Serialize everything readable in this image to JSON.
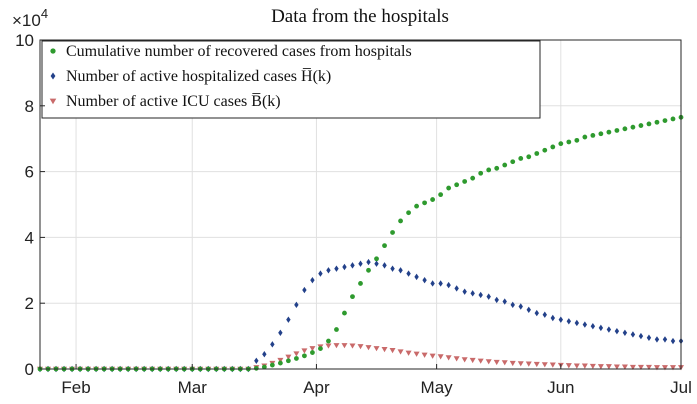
{
  "chart_data": {
    "type": "scatter",
    "title": "Data from the hospitals",
    "y_multiplier": {
      "base": "×10",
      "exponent": "4"
    },
    "xlim": [
      23,
      183
    ],
    "xticks": [
      {
        "value": 32,
        "label": "Feb"
      },
      {
        "value": 61,
        "label": "Mar"
      },
      {
        "value": 92,
        "label": "Apr"
      },
      {
        "value": 122,
        "label": "May"
      },
      {
        "value": 153,
        "label": "Jun"
      },
      {
        "value": 183,
        "label": "Jul"
      }
    ],
    "ylim": [
      0,
      100000
    ],
    "yticks": [
      {
        "value": 0,
        "label": "0"
      },
      {
        "value": 20000,
        "label": "2"
      },
      {
        "value": 40000,
        "label": "4"
      },
      {
        "value": 60000,
        "label": "6"
      },
      {
        "value": 80000,
        "label": "8"
      },
      {
        "value": 100000,
        "label": "10"
      }
    ],
    "grid": true,
    "legend": "upper left",
    "x": [
      23,
      25,
      27,
      29,
      31,
      33,
      35,
      37,
      39,
      41,
      43,
      45,
      47,
      49,
      51,
      53,
      55,
      57,
      59,
      61,
      63,
      65,
      67,
      69,
      71,
      73,
      75,
      77,
      79,
      81,
      83,
      85,
      87,
      89,
      91,
      93,
      95,
      97,
      99,
      101,
      103,
      105,
      107,
      109,
      111,
      113,
      115,
      117,
      119,
      121,
      123,
      125,
      127,
      129,
      131,
      133,
      135,
      137,
      139,
      141,
      143,
      145,
      147,
      149,
      151,
      153,
      155,
      157,
      159,
      161,
      163,
      165,
      167,
      169,
      171,
      173,
      175,
      177,
      179,
      181,
      183
    ],
    "series": [
      {
        "name": "Cumulative number of recovered cases from hospitals",
        "color": "#2e9a2e",
        "marker": "circle",
        "values": [
          0,
          0,
          0,
          0,
          0,
          0,
          0,
          0,
          0,
          0,
          0,
          0,
          0,
          0,
          0,
          0,
          0,
          0,
          0,
          0,
          0,
          0,
          0,
          0,
          0,
          0,
          0,
          200,
          600,
          1200,
          1800,
          2500,
          3200,
          4000,
          5000,
          6200,
          8500,
          12000,
          17000,
          22000,
          26000,
          30000,
          33500,
          37500,
          41500,
          45000,
          47500,
          49500,
          50500,
          51500,
          53000,
          55000,
          56000,
          57000,
          58000,
          59500,
          60500,
          61000,
          62000,
          63000,
          64000,
          64500,
          65500,
          66500,
          67500,
          68500,
          69000,
          69500,
          70500,
          71000,
          71500,
          72000,
          72500,
          73000,
          73500,
          74000,
          74500,
          75000,
          75500,
          76000,
          76500
        ]
      },
      {
        "name": "Number of active hospitalized cases H̅(k)",
        "color": "#23418a",
        "marker": "diamond",
        "values": [
          0,
          0,
          0,
          0,
          0,
          0,
          0,
          0,
          0,
          0,
          0,
          0,
          0,
          0,
          0,
          0,
          0,
          0,
          0,
          0,
          0,
          0,
          0,
          0,
          0,
          0,
          0,
          2500,
          4500,
          7500,
          11000,
          15000,
          19500,
          24000,
          27000,
          29000,
          30000,
          30500,
          31000,
          31500,
          32000,
          32500,
          32000,
          31500,
          30500,
          30000,
          29000,
          28000,
          27000,
          26000,
          26000,
          25500,
          24500,
          23500,
          23000,
          22500,
          22000,
          21000,
          20500,
          19500,
          19000,
          18000,
          17000,
          16500,
          15500,
          15000,
          14500,
          14000,
          13500,
          13000,
          12500,
          12000,
          11500,
          11000,
          10500,
          10000,
          9500,
          9000,
          9000,
          8500,
          8500
        ]
      },
      {
        "name": "Number of active ICU cases B̅(k)",
        "color": "#c96a6a",
        "marker": "triangle-down",
        "values": [
          0,
          0,
          0,
          0,
          0,
          0,
          0,
          0,
          0,
          0,
          0,
          0,
          0,
          0,
          0,
          0,
          0,
          0,
          0,
          0,
          0,
          0,
          0,
          0,
          0,
          0,
          0,
          500,
          1000,
          1800,
          2700,
          3700,
          4700,
          5600,
          6300,
          6800,
          7100,
          7200,
          7200,
          7100,
          6900,
          6600,
          6300,
          6000,
          5700,
          5300,
          4900,
          4600,
          4300,
          4000,
          3800,
          3500,
          3200,
          2900,
          2700,
          2500,
          2300,
          2100,
          2000,
          1800,
          1700,
          1600,
          1500,
          1400,
          1300,
          1200,
          1100,
          1000,
          1000,
          900,
          800,
          800,
          700,
          700,
          600,
          600,
          600,
          500,
          500,
          500,
          500
        ]
      }
    ]
  }
}
